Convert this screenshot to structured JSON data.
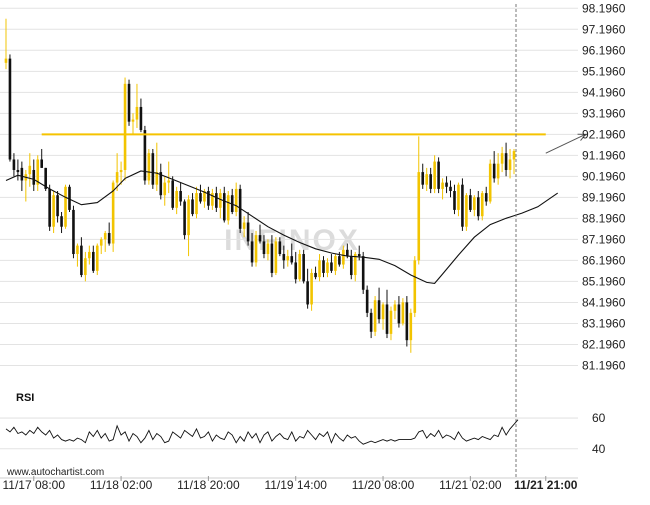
{
  "colors": {
    "bullish": "#f2c400",
    "bearish": "#111111",
    "resistance": "#f5c300",
    "ma": "#111111",
    "grid": "#e3e3e3",
    "rsi": "#111111",
    "arrow": "#555555",
    "watermark": "#dcdcdc"
  },
  "watermark": "INFINOX",
  "footer_text": "www.autochartist.com",
  "chart_data": {
    "type": "candlestick",
    "ylim": [
      80.6,
      98.4
    ],
    "y_ticks": [
      98.196,
      97.196,
      96.196,
      95.196,
      94.196,
      93.196,
      92.196,
      91.196,
      90.196,
      89.196,
      88.196,
      87.196,
      86.196,
      85.196,
      84.196,
      83.196,
      82.196,
      81.196
    ],
    "y_tick_labels": [
      "98.1960",
      "97.1960",
      "96.1960",
      "95.1960",
      "94.1960",
      "93.1960",
      "92.1960",
      "91.1960",
      "90.1960",
      "89.1960",
      "88.1960",
      "87.1960",
      "86.1960",
      "85.1960",
      "84.1960",
      "83.1960",
      "82.1960",
      "81.1960"
    ],
    "x_ticks": [
      "11/17 08:00",
      "11/18 02:00",
      "11/18 20:00",
      "11/19 14:00",
      "11/20 08:00",
      "11/21 02:00",
      "11/21 21:00"
    ],
    "x_tick_index": [
      7,
      29,
      51,
      73,
      95,
      117,
      136
    ],
    "highlight_tick": "11/21 21:00",
    "resistance_level": 92.196,
    "resistance_range": [
      9,
      136
    ],
    "projection": {
      "from": [
        136,
        91.3
      ],
      "to": [
        143,
        92.196
      ]
    },
    "ohlc": [
      [
        95.6,
        97.7,
        95.3,
        95.8
      ],
      [
        95.8,
        96.0,
        90.9,
        91.0
      ],
      [
        91.0,
        91.3,
        90.2,
        90.5
      ],
      [
        90.5,
        91.0,
        90.0,
        90.4
      ],
      [
        90.6,
        90.9,
        89.5,
        90.0
      ],
      [
        90.0,
        90.5,
        89.0,
        90.3
      ],
      [
        90.3,
        91.3,
        89.7,
        90.7
      ],
      [
        90.5,
        91.0,
        89.5,
        89.8
      ],
      [
        89.8,
        91.2,
        89.5,
        91.0
      ],
      [
        91.0,
        91.5,
        90.6,
        90.6
      ],
      [
        90.6,
        90.6,
        89.5,
        89.6
      ],
      [
        89.6,
        89.8,
        87.6,
        87.8
      ],
      [
        87.8,
        89.5,
        87.5,
        89.3
      ],
      [
        89.3,
        89.5,
        88.0,
        88.3
      ],
      [
        88.3,
        88.5,
        87.5,
        87.8
      ],
      [
        87.8,
        89.8,
        87.7,
        89.7
      ],
      [
        89.7,
        89.8,
        88.5,
        88.6
      ],
      [
        88.6,
        88.8,
        86.3,
        86.5
      ],
      [
        86.5,
        87.0,
        85.9,
        86.9
      ],
      [
        86.9,
        87.3,
        85.4,
        85.5
      ],
      [
        85.5,
        86.6,
        85.2,
        86.3
      ],
      [
        86.3,
        86.9,
        86.0,
        86.6
      ],
      [
        86.6,
        86.9,
        85.6,
        85.7
      ],
      [
        85.7,
        87.0,
        85.5,
        86.9
      ],
      [
        86.9,
        87.3,
        86.5,
        87.2
      ],
      [
        87.2,
        87.6,
        86.6,
        87.5
      ],
      [
        87.5,
        88.0,
        86.9,
        87.0
      ],
      [
        87.0,
        90.0,
        86.6,
        89.9
      ],
      [
        89.9,
        91.3,
        89.5,
        90.4
      ],
      [
        90.4,
        90.9,
        89.8,
        90.5
      ],
      [
        90.5,
        94.9,
        90.0,
        94.6
      ],
      [
        94.6,
        94.8,
        92.6,
        92.8
      ],
      [
        92.8,
        93.2,
        92.2,
        92.9
      ],
      [
        92.9,
        94.6,
        92.5,
        93.5
      ],
      [
        93.5,
        93.9,
        92.3,
        92.4
      ],
      [
        92.4,
        92.6,
        89.8,
        90.0
      ],
      [
        90.0,
        91.5,
        89.8,
        91.3
      ],
      [
        91.3,
        91.5,
        89.6,
        89.8
      ],
      [
        89.8,
        91.8,
        89.5,
        90.4
      ],
      [
        90.4,
        90.8,
        89.1,
        89.3
      ],
      [
        89.3,
        90.2,
        88.8,
        89.9
      ],
      [
        89.9,
        90.9,
        89.4,
        90.0
      ],
      [
        90.0,
        90.2,
        88.6,
        88.7
      ],
      [
        88.7,
        89.7,
        88.4,
        89.5
      ],
      [
        89.5,
        89.9,
        88.8,
        89.0
      ],
      [
        89.0,
        89.1,
        87.2,
        87.4
      ],
      [
        87.4,
        89.3,
        86.4,
        89.1
      ],
      [
        89.1,
        89.4,
        88.3,
        88.4
      ],
      [
        88.4,
        89.7,
        88.2,
        89.4
      ],
      [
        89.4,
        89.8,
        88.9,
        89.0
      ],
      [
        89.0,
        89.6,
        88.7,
        89.5
      ],
      [
        89.5,
        89.7,
        88.6,
        88.8
      ],
      [
        88.8,
        89.6,
        88.6,
        89.4
      ],
      [
        89.4,
        89.7,
        88.5,
        88.7
      ],
      [
        88.7,
        89.6,
        88.2,
        89.4
      ],
      [
        89.4,
        89.7,
        88.0,
        88.1
      ],
      [
        88.1,
        89.5,
        87.9,
        89.3
      ],
      [
        89.3,
        89.6,
        88.4,
        88.5
      ],
      [
        88.5,
        89.9,
        88.3,
        89.6
      ],
      [
        89.6,
        89.8,
        87.5,
        87.7
      ],
      [
        87.7,
        88.3,
        87.3,
        88.0
      ],
      [
        88.0,
        88.5,
        86.9,
        87.1
      ],
      [
        87.1,
        87.5,
        85.9,
        86.1
      ],
      [
        86.1,
        87.6,
        85.9,
        87.4
      ],
      [
        87.4,
        87.9,
        87.0,
        87.1
      ],
      [
        87.1,
        87.4,
        86.3,
        86.5
      ],
      [
        86.5,
        87.2,
        86.2,
        87.0
      ],
      [
        87.0,
        87.4,
        85.4,
        85.6
      ],
      [
        85.6,
        87.3,
        85.5,
        87.1
      ],
      [
        87.1,
        87.3,
        86.4,
        86.5
      ],
      [
        86.5,
        86.9,
        85.8,
        86.2
      ],
      [
        86.2,
        86.7,
        85.9,
        86.4
      ],
      [
        86.4,
        87.0,
        86.0,
        86.1
      ],
      [
        86.1,
        86.6,
        85.1,
        85.3
      ],
      [
        85.3,
        86.7,
        85.2,
        86.5
      ],
      [
        86.5,
        86.7,
        85.1,
        85.2
      ],
      [
        85.2,
        85.8,
        83.9,
        84.1
      ],
      [
        84.1,
        85.8,
        83.8,
        85.6
      ],
      [
        85.6,
        85.9,
        85.3,
        85.4
      ],
      [
        85.4,
        86.5,
        85.2,
        86.2
      ],
      [
        86.2,
        86.4,
        85.4,
        85.6
      ],
      [
        85.6,
        86.3,
        85.4,
        86.1
      ],
      [
        86.1,
        86.5,
        85.6,
        85.7
      ],
      [
        85.7,
        86.5,
        85.5,
        86.4
      ],
      [
        86.4,
        86.6,
        85.9,
        86.0
      ],
      [
        86.0,
        86.9,
        85.8,
        86.7
      ],
      [
        86.7,
        87.0,
        86.3,
        86.4
      ],
      [
        86.4,
        86.7,
        85.3,
        85.5
      ],
      [
        85.5,
        86.6,
        85.2,
        86.5
      ],
      [
        86.5,
        86.9,
        86.2,
        86.4
      ],
      [
        86.4,
        86.6,
        84.6,
        84.8
      ],
      [
        84.8,
        85.0,
        83.5,
        83.7
      ],
      [
        83.7,
        83.9,
        82.5,
        82.8
      ],
      [
        82.8,
        84.5,
        82.6,
        84.3
      ],
      [
        84.3,
        84.9,
        83.2,
        83.4
      ],
      [
        83.4,
        84.2,
        82.9,
        84.1
      ],
      [
        84.1,
        84.8,
        82.5,
        82.7
      ],
      [
        82.7,
        84.0,
        82.4,
        83.8
      ],
      [
        83.8,
        84.3,
        83.4,
        84.1
      ],
      [
        84.1,
        84.5,
        83.0,
        83.2
      ],
      [
        83.2,
        84.4,
        83.1,
        84.2
      ],
      [
        84.2,
        84.5,
        82.1,
        82.4
      ],
      [
        82.4,
        83.9,
        81.8,
        83.7
      ],
      [
        83.7,
        86.4,
        83.5,
        86.2
      ],
      [
        86.2,
        92.1,
        86.0,
        90.4
      ],
      [
        90.4,
        90.8,
        89.6,
        89.8
      ],
      [
        89.8,
        90.6,
        89.5,
        90.3
      ],
      [
        90.3,
        90.6,
        89.4,
        89.6
      ],
      [
        89.6,
        91.2,
        89.4,
        90.9
      ],
      [
        90.9,
        91.1,
        89.4,
        89.6
      ],
      [
        89.6,
        90.1,
        89.1,
        89.9
      ],
      [
        89.9,
        90.2,
        89.4,
        89.7
      ],
      [
        89.7,
        90.0,
        89.2,
        89.5
      ],
      [
        89.5,
        89.8,
        88.4,
        88.6
      ],
      [
        88.6,
        89.9,
        88.3,
        89.8
      ],
      [
        89.8,
        90.1,
        87.6,
        87.8
      ],
      [
        87.8,
        89.4,
        87.6,
        89.3
      ],
      [
        89.3,
        89.6,
        88.5,
        88.6
      ],
      [
        88.6,
        89.3,
        88.3,
        89.2
      ],
      [
        89.2,
        89.5,
        88.1,
        88.3
      ],
      [
        88.3,
        89.5,
        88.1,
        89.4
      ],
      [
        89.4,
        89.7,
        88.8,
        89.0
      ],
      [
        89.0,
        91.0,
        88.9,
        90.8
      ],
      [
        90.8,
        91.4,
        89.9,
        90.1
      ],
      [
        90.1,
        91.3,
        89.8,
        90.8
      ],
      [
        90.8,
        91.6,
        90.4,
        91.3
      ],
      [
        91.3,
        91.8,
        90.2,
        90.5
      ],
      [
        90.5,
        91.5,
        90.1,
        91.0
      ],
      [
        91.0,
        91.5,
        90.3,
        91.4
      ]
    ],
    "ma": [
      [
        0,
        90.0
      ],
      [
        3,
        90.25
      ],
      [
        7,
        90.05
      ],
      [
        11,
        89.6
      ],
      [
        15,
        89.2
      ],
      [
        19,
        88.85
      ],
      [
        23,
        88.95
      ],
      [
        27,
        89.5
      ],
      [
        30,
        90.1
      ],
      [
        34,
        90.45
      ],
      [
        38,
        90.35
      ],
      [
        42,
        90.05
      ],
      [
        46,
        89.75
      ],
      [
        50,
        89.45
      ],
      [
        54,
        89.1
      ],
      [
        58,
        88.8
      ],
      [
        62,
        88.3
      ],
      [
        66,
        87.8
      ],
      [
        70,
        87.4
      ],
      [
        74,
        87.05
      ],
      [
        78,
        86.75
      ],
      [
        82,
        86.55
      ],
      [
        86,
        86.4
      ],
      [
        90,
        86.35
      ],
      [
        94,
        86.25
      ],
      [
        98,
        85.95
      ],
      [
        102,
        85.5
      ],
      [
        106,
        85.15
      ],
      [
        108,
        85.1
      ],
      [
        110,
        85.55
      ],
      [
        114,
        86.45
      ],
      [
        118,
        87.3
      ],
      [
        122,
        87.9
      ],
      [
        126,
        88.2
      ],
      [
        130,
        88.45
      ],
      [
        134,
        88.75
      ],
      [
        139,
        89.4
      ]
    ],
    "rsi": {
      "label": "RSI",
      "ylim": [
        34,
        64
      ],
      "ticks": [
        60,
        40
      ],
      "values": [
        53,
        51,
        54,
        50,
        51,
        49,
        52,
        50,
        54,
        51,
        49,
        52,
        47,
        49,
        46,
        45,
        46,
        45,
        47,
        46,
        44,
        51,
        48,
        52,
        47,
        50,
        45,
        46,
        55,
        49,
        51,
        45,
        50,
        48,
        44,
        47,
        52,
        46,
        50,
        48,
        44,
        45,
        51,
        49,
        47,
        52,
        50,
        48,
        53,
        47,
        48,
        51,
        45,
        49,
        47,
        46,
        51,
        49,
        44,
        48,
        45,
        51,
        47,
        50,
        44,
        49,
        51,
        45,
        48,
        50,
        47,
        46,
        51,
        45,
        48,
        47,
        52,
        49,
        46,
        50,
        48,
        51,
        44,
        50,
        47,
        45,
        49,
        47,
        48,
        45,
        43,
        44,
        45,
        44,
        45,
        46,
        45,
        46,
        45,
        46,
        46,
        46,
        46,
        47,
        51,
        52,
        47,
        50,
        48,
        52,
        47,
        49,
        48,
        46,
        51,
        47,
        45,
        46,
        47,
        46,
        48,
        47,
        46,
        49,
        48,
        54,
        49,
        53,
        56,
        59
      ]
    }
  }
}
